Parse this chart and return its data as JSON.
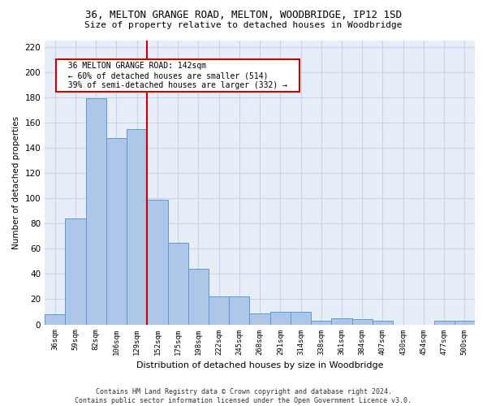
{
  "title1": "36, MELTON GRANGE ROAD, MELTON, WOODBRIDGE, IP12 1SD",
  "title2": "Size of property relative to detached houses in Woodbridge",
  "xlabel": "Distribution of detached houses by size in Woodbridge",
  "ylabel": "Number of detached properties",
  "bar_labels": [
    "36sqm",
    "59sqm",
    "82sqm",
    "106sqm",
    "129sqm",
    "152sqm",
    "175sqm",
    "198sqm",
    "222sqm",
    "245sqm",
    "268sqm",
    "291sqm",
    "314sqm",
    "338sqm",
    "361sqm",
    "384sqm",
    "407sqm",
    "430sqm",
    "454sqm",
    "477sqm",
    "500sqm"
  ],
  "bar_values": [
    8,
    84,
    179,
    148,
    155,
    99,
    65,
    44,
    22,
    22,
    9,
    10,
    10,
    3,
    5,
    4,
    3,
    0,
    0,
    3,
    3
  ],
  "bar_color": "#aec6e8",
  "bar_edge_color": "#5b9bd5",
  "grid_color": "#c8d4e8",
  "background_color": "#e8eef8",
  "vline_x": 4.5,
  "vline_color": "#cc0000",
  "annotation_text": "  36 MELTON GRANGE ROAD: 142sqm  \n  ← 60% of detached houses are smaller (514)  \n  39% of semi-detached houses are larger (332) →  ",
  "annotation_box_color": "#ffffff",
  "annotation_box_edge": "#cc0000",
  "ylim": [
    0,
    225
  ],
  "yticks": [
    0,
    20,
    40,
    60,
    80,
    100,
    120,
    140,
    160,
    180,
    200,
    220
  ],
  "footer": "Contains HM Land Registry data © Crown copyright and database right 2024.\nContains public sector information licensed under the Open Government Licence v3.0."
}
